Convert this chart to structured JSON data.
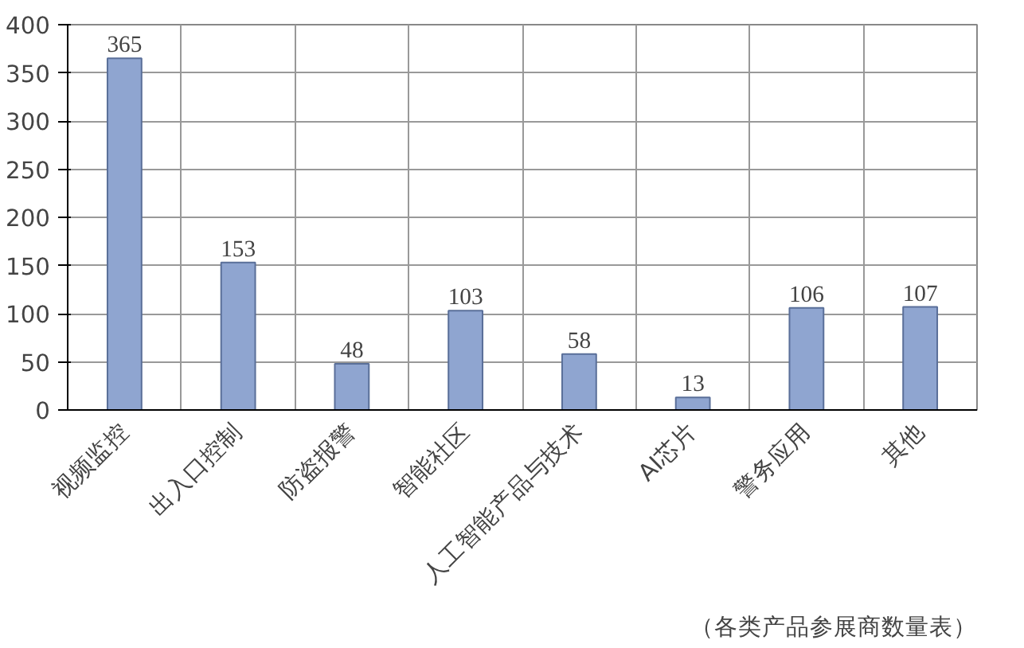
{
  "chart_data": {
    "type": "bar",
    "categories": [
      "视频监控",
      "出入口控制",
      "防盗报警",
      "智能社区",
      "人工智能产品与技术",
      "AI芯片",
      "警务应用",
      "其他"
    ],
    "values": [
      365,
      153,
      48,
      103,
      58,
      13,
      106,
      107
    ],
    "color": "#8fa5d0",
    "ylim": [
      0,
      400
    ],
    "yticks": [
      0,
      50,
      100,
      150,
      200,
      250,
      300,
      350,
      400
    ],
    "grid": true,
    "data_labels": true,
    "annotations": [
      "（各类产品参展商数量表）"
    ]
  }
}
